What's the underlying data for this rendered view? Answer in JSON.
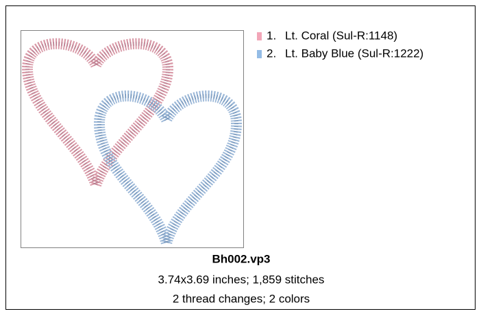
{
  "threads": [
    {
      "number": "1.",
      "name": "Lt. Coral (Sul-R:1148)",
      "color": "#f2a6b8"
    },
    {
      "number": "2.",
      "name": "Lt. Baby Blue (Sul-R:1222)",
      "color": "#94bce6"
    }
  ],
  "file": {
    "name": "Bh002.vp3",
    "details": "3.74x3.69 inches; 1,859 stitches",
    "summary": "2 thread changes; 2 colors"
  }
}
